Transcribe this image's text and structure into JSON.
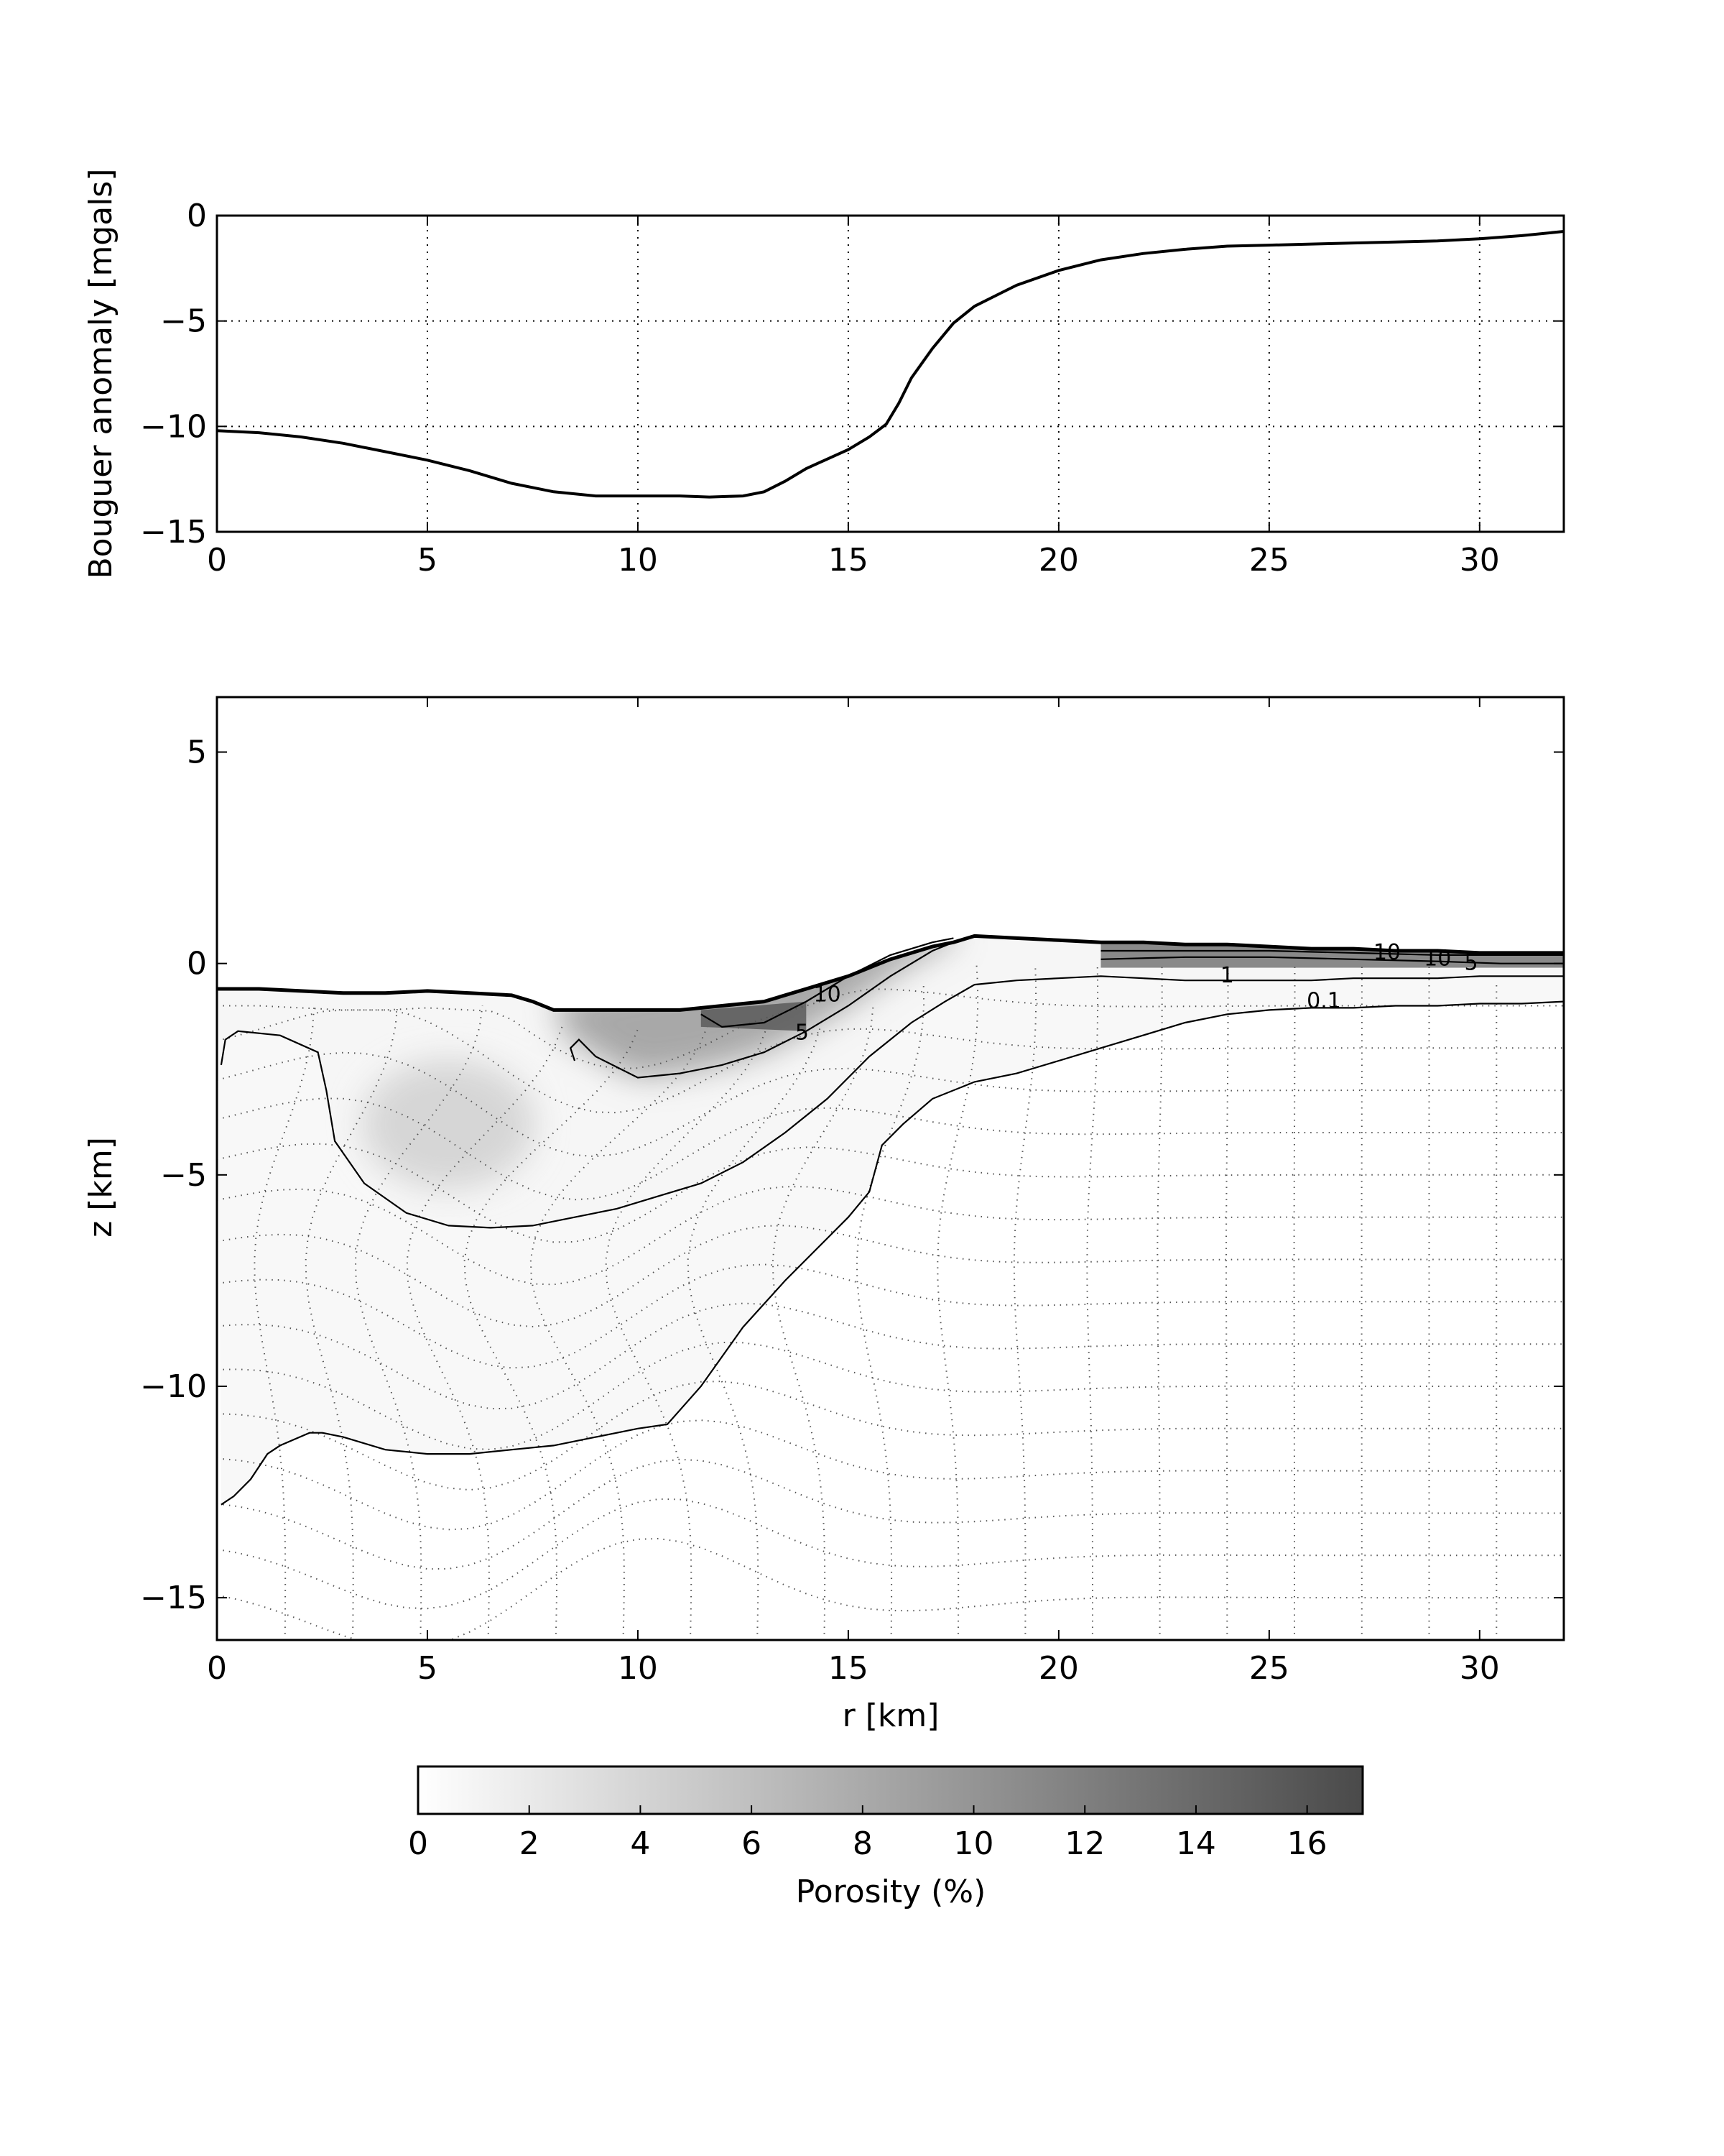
{
  "chart_data": [
    {
      "type": "line",
      "title": "",
      "xlabel": "",
      "ylabel": "Bouguer anomaly [mgals]",
      "xlim": [
        0,
        32
      ],
      "ylim": [
        -15,
        0
      ],
      "xticks": [
        0,
        5,
        10,
        15,
        20,
        25,
        30
      ],
      "yticks": [
        0,
        -5,
        -10,
        -15
      ],
      "tick_labels_x": [
        "0",
        "5",
        "10",
        "15",
        "20",
        "25",
        "30"
      ],
      "tick_labels_y": [
        "0",
        "−5",
        "−10",
        "−15"
      ],
      "grid": true,
      "series": [
        {
          "x": [
            0,
            1,
            2,
            3,
            4,
            5,
            6,
            7,
            8,
            9,
            10,
            11,
            11.7,
            12.5,
            13,
            13.5,
            14,
            15,
            15.5,
            15.9,
            16.2,
            16.5,
            17,
            17.5,
            18,
            19,
            20,
            21,
            22,
            23,
            24,
            25,
            26,
            27,
            28,
            29,
            30,
            31,
            32
          ],
          "y": [
            -10.2,
            -10.3,
            -10.5,
            -10.8,
            -11.2,
            -11.6,
            -12.1,
            -12.7,
            -13.1,
            -13.3,
            -13.3,
            -13.3,
            -13.35,
            -13.3,
            -13.1,
            -12.6,
            -12.0,
            -11.1,
            -10.5,
            -9.9,
            -8.9,
            -7.7,
            -6.3,
            -5.1,
            -4.3,
            -3.3,
            -2.6,
            -2.1,
            -1.8,
            -1.6,
            -1.45,
            -1.4,
            -1.35,
            -1.3,
            -1.25,
            -1.2,
            -1.1,
            -0.95,
            -0.75
          ]
        }
      ]
    },
    {
      "type": "heatmap",
      "title": "",
      "xlabel": "r [km]",
      "ylabel": "z [km]",
      "xlim": [
        0,
        32
      ],
      "ylim": [
        -16,
        6.3
      ],
      "xticks": [
        0,
        5,
        10,
        15,
        20,
        25,
        30
      ],
      "yticks": [
        5,
        0,
        -5,
        -10,
        -15
      ],
      "tick_labels_x": [
        "0",
        "5",
        "10",
        "15",
        "20",
        "25",
        "30"
      ],
      "tick_labels_y": [
        "5",
        "0",
        "−5",
        "−10",
        "−15"
      ],
      "colorbar": {
        "label": "Porosity (%)",
        "range": [
          0,
          17
        ],
        "ticks": [
          0,
          2,
          4,
          6,
          8,
          10,
          12,
          14,
          16
        ],
        "tick_labels": [
          "0",
          "2",
          "4",
          "6",
          "8",
          "10",
          "12",
          "14",
          "16"
        ],
        "color_low": "#ffffff",
        "color_high": "#4a4a4a"
      },
      "surface": {
        "x": [
          0,
          1,
          2,
          3,
          4,
          5,
          6,
          7,
          7.5,
          8,
          9,
          10,
          11,
          12,
          13,
          14,
          15,
          16,
          17,
          17.5,
          18,
          19,
          20,
          21,
          22,
          23,
          24,
          25,
          26,
          27,
          28,
          29,
          30,
          31,
          32
        ],
        "z": [
          -0.6,
          -0.6,
          -0.65,
          -0.7,
          -0.7,
          -0.65,
          -0.7,
          -0.75,
          -0.9,
          -1.1,
          -1.1,
          -1.1,
          -1.1,
          -1.0,
          -0.9,
          -0.6,
          -0.3,
          0.1,
          0.4,
          0.5,
          0.65,
          0.6,
          0.55,
          0.5,
          0.5,
          0.45,
          0.45,
          0.4,
          0.35,
          0.35,
          0.3,
          0.3,
          0.25,
          0.25,
          0.25
        ]
      },
      "contours": [
        {
          "level": "0.1",
          "x": [
            0.1,
            0.4,
            0.8,
            1.2,
            1.5,
            2.2,
            2.5,
            3.0,
            4.0,
            5.0,
            6.0,
            7.0,
            8.0,
            9.0,
            10.0,
            10.7,
            11.5,
            12.5,
            13.5,
            14.5,
            15.0,
            15.5,
            15.8,
            16.3,
            17.0,
            18.0,
            19.0,
            20.0,
            21.0,
            22.0,
            23.0,
            24.0,
            25.0,
            26.0,
            27.0,
            28.0,
            29.0,
            30.0,
            31.0,
            32.0
          ],
          "z": [
            -12.8,
            -12.6,
            -12.2,
            -11.6,
            -11.4,
            -11.1,
            -11.1,
            -11.2,
            -11.5,
            -11.6,
            -11.6,
            -11.5,
            -11.4,
            -11.2,
            -11.0,
            -10.9,
            -10.0,
            -8.6,
            -7.5,
            -6.5,
            -6.0,
            -5.4,
            -4.3,
            -3.8,
            -3.2,
            -2.8,
            -2.6,
            -2.3,
            -2.0,
            -1.7,
            -1.4,
            -1.2,
            -1.1,
            -1.05,
            -1.05,
            -1.0,
            -1.0,
            -0.95,
            -0.95,
            -0.9
          ]
        },
        {
          "level": "1",
          "x": [
            0.1,
            0.2,
            0.5,
            1.5,
            2.4,
            2.6,
            2.8,
            3.5,
            4.5,
            5.5,
            6.5,
            7.5,
            8.5,
            9.5,
            10.5,
            11.5,
            12.5,
            13.5,
            14.5,
            15.5,
            16.5,
            17.3,
            18.0,
            19.0,
            20.0,
            21.0,
            22.0,
            23.0,
            24.0,
            25.0,
            26.0,
            27.0,
            28.0,
            29.0,
            30.0,
            31.0,
            32.0
          ],
          "z": [
            -2.4,
            -1.8,
            -1.6,
            -1.7,
            -2.1,
            -3.0,
            -4.2,
            -5.2,
            -5.9,
            -6.2,
            -6.25,
            -6.2,
            -6.0,
            -5.8,
            -5.5,
            -5.2,
            -4.7,
            -4.0,
            -3.2,
            -2.2,
            -1.4,
            -0.9,
            -0.5,
            -0.4,
            -0.35,
            -0.3,
            -0.35,
            -0.4,
            -0.4,
            -0.4,
            -0.4,
            -0.35,
            -0.35,
            -0.35,
            -0.3,
            -0.3,
            -0.3
          ]
        },
        {
          "level": "5",
          "x": [
            8.5,
            8.4,
            8.6,
            9.0,
            10.0,
            11.0,
            12.0,
            13.0,
            14.0,
            15.0,
            16.0,
            17.0,
            17.5
          ],
          "z": [
            -2.3,
            -2.0,
            -1.8,
            -2.2,
            -2.7,
            -2.6,
            -2.4,
            -2.1,
            -1.6,
            -1.0,
            -0.3,
            0.3,
            0.5
          ]
        },
        {
          "level": "10",
          "x": [
            11.5,
            12.0,
            13.0,
            14.0,
            15.0,
            16.0,
            17.0,
            17.5
          ],
          "z": [
            -1.2,
            -1.5,
            -1.4,
            -0.9,
            -0.3,
            0.2,
            0.5,
            0.6
          ]
        },
        {
          "level": "5",
          "x": [
            21.0,
            23.0,
            25.0,
            27.0,
            29.0,
            30.5,
            32.0
          ],
          "z": [
            0.1,
            0.15,
            0.15,
            0.1,
            0.05,
            0.0,
            0.0
          ]
        },
        {
          "level": "10",
          "x": [
            21.0,
            23.0,
            25.0,
            27.0,
            29.0,
            30.5,
            32.0
          ],
          "z": [
            0.3,
            0.3,
            0.3,
            0.25,
            0.2,
            0.2,
            0.2
          ]
        }
      ],
      "contour_labels": [
        {
          "text": "10",
          "x": 27.8,
          "z": 0.2
        },
        {
          "text": "10",
          "x": 29.0,
          "z": 0.05
        },
        {
          "text": "5",
          "x": 29.8,
          "z": -0.05
        },
        {
          "text": "1",
          "x": 24.0,
          "z": -0.35
        },
        {
          "text": "0.1",
          "x": 26.3,
          "z": -0.95
        },
        {
          "text": "10",
          "x": 14.5,
          "z": -0.8
        },
        {
          "text": "5",
          "x": 13.9,
          "z": -1.7
        }
      ]
    }
  ]
}
